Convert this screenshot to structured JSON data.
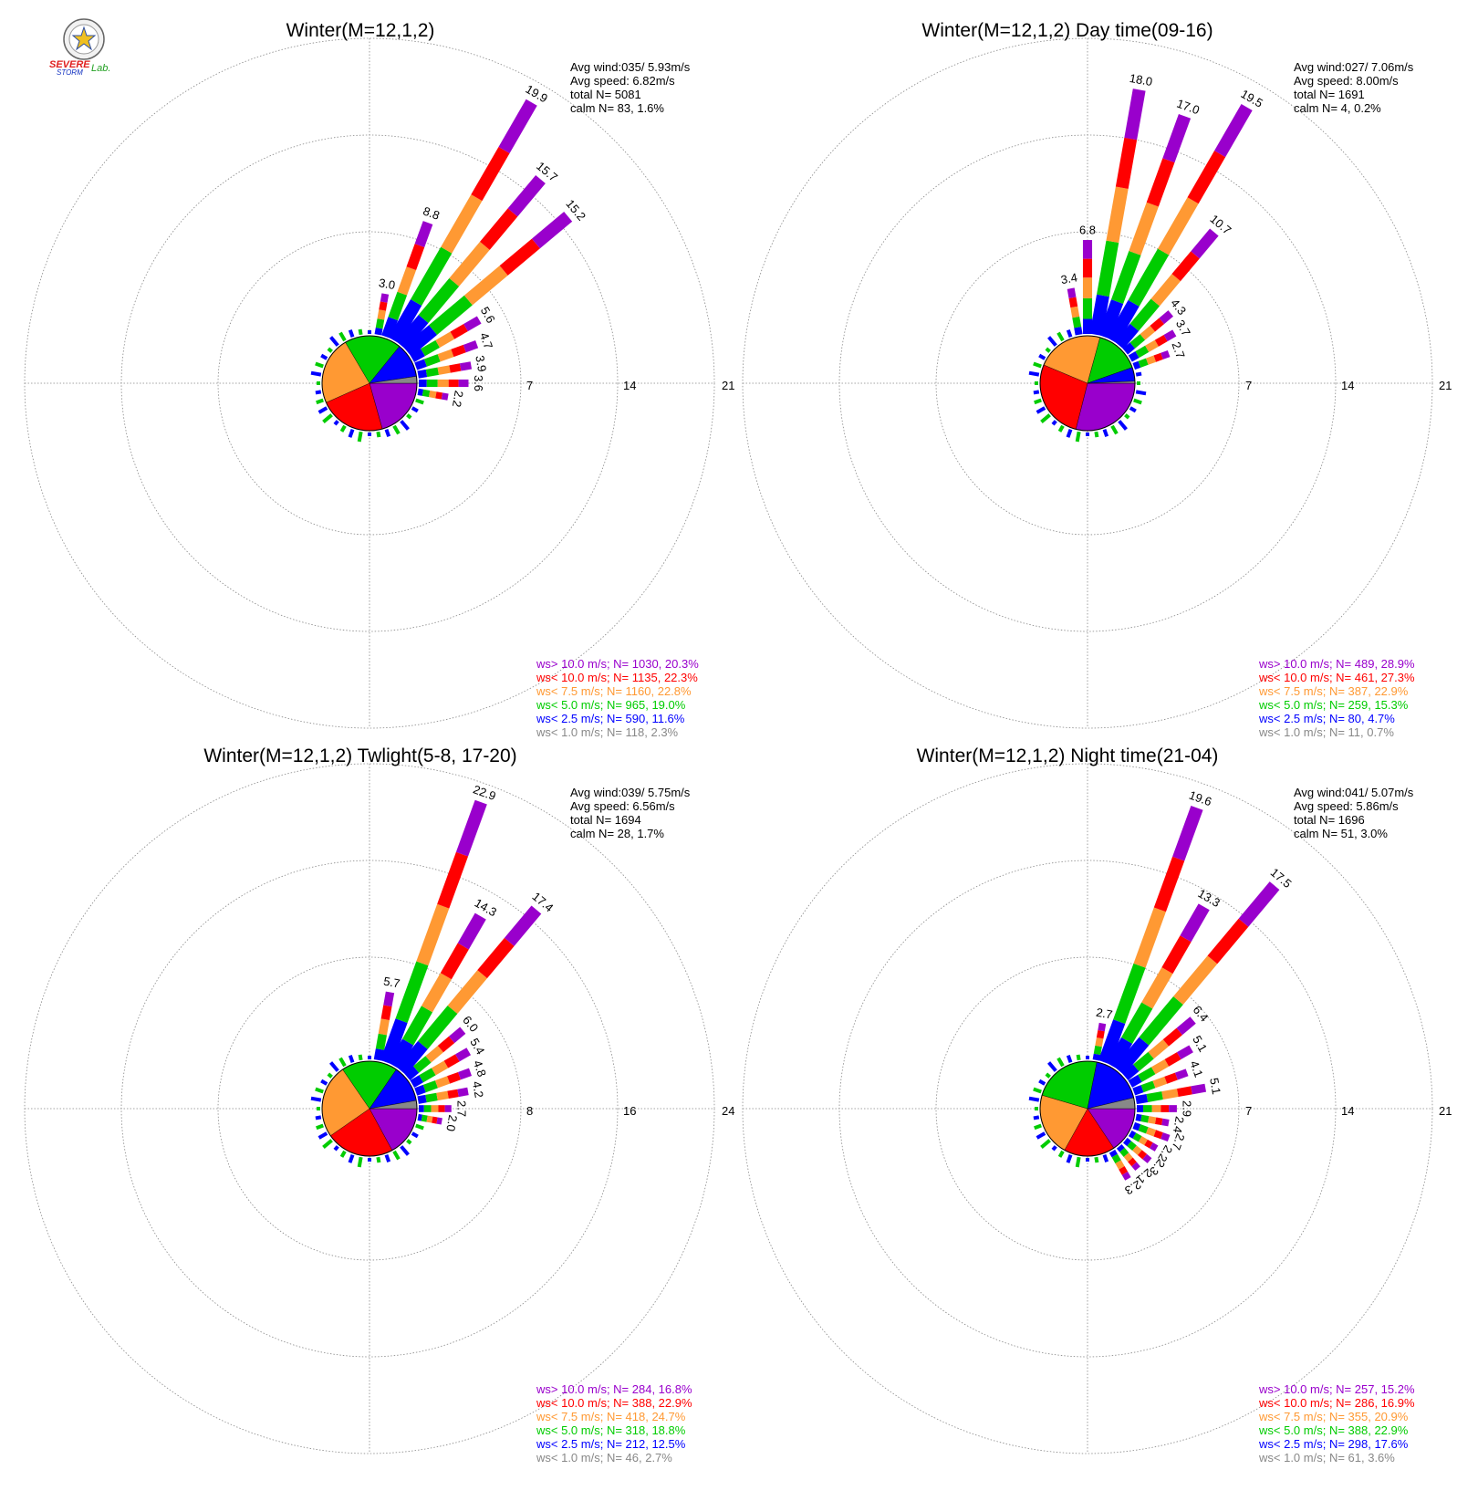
{
  "logo": {
    "text_top": "SEVERE",
    "text_bottom": "STORM",
    "text_lab": "Lab."
  },
  "colors": {
    "v10plus": "#9900CC",
    "v10": "#FF0000",
    "v7_5": "#FF9933",
    "v5": "#00CC00",
    "v2_5": "#0000FF",
    "v1": "#888888"
  },
  "chart_data": [
    {
      "type": "windrose",
      "title": "Winter(M=12,1,2)",
      "stats": {
        "avg_wind": "Avg wind:035/ 5.93m/s",
        "avg_speed": "Avg speed: 6.82m/s",
        "total": "total N=      5081",
        "calm": "calm N=     83,   1.6%"
      },
      "ring_labels": [
        "7",
        "14",
        "21"
      ],
      "rmax": 21,
      "directions_deg": [
        10,
        20,
        30,
        40,
        50,
        60,
        70,
        80,
        90,
        100
      ],
      "direction_totals": [
        3.0,
        8.8,
        19.9,
        15.7,
        15.2,
        5.6,
        4.7,
        3.9,
        3.6,
        2.2
      ],
      "direction_labels": [
        "3.0",
        "8.8",
        "19.9",
        "15.7",
        "15.2",
        "5.6",
        "4.7",
        "3.9",
        "3.6",
        "2.2"
      ],
      "pie": [
        20.3,
        22.3,
        22.8,
        19.0,
        11.6,
        2.3
      ],
      "legend": [
        "ws> 10.0 m/s; N=   1030, 20.3%",
        "ws< 10.0 m/s; N=   1135, 22.3%",
        "ws<  7.5 m/s; N=   1160, 22.8%",
        "ws<  5.0 m/s; N=    965, 19.0%",
        "ws<  2.5 m/s; N=    590, 11.6%",
        "ws<  1.0 m/s; N=    118,  2.3%"
      ]
    },
    {
      "type": "windrose",
      "title": "Winter(M=12,1,2) Day time(09-16)",
      "stats": {
        "avg_wind": "Avg wind:027/ 7.06m/s",
        "avg_speed": "Avg speed: 8.00m/s",
        "total": "total N=      1691",
        "calm": "calm N=      4,   0.2%"
      },
      "ring_labels": [
        "7",
        "14",
        "21"
      ],
      "rmax": 21,
      "directions_deg": [
        -10,
        0,
        10,
        20,
        30,
        40,
        50,
        60,
        70
      ],
      "direction_totals": [
        3.4,
        6.8,
        18.0,
        17.0,
        19.5,
        10.7,
        4.3,
        3.7,
        2.7
      ],
      "direction_labels": [
        "3.4",
        "6.8",
        "18.0",
        "17.0",
        "19.5",
        "10.7",
        "4.3",
        "3.7",
        "2.7"
      ],
      "pie": [
        28.9,
        27.3,
        22.9,
        15.3,
        4.7,
        0.7
      ],
      "legend": [
        "ws> 10.0 m/s; N=    489, 28.9%",
        "ws< 10.0 m/s; N=    461, 27.3%",
        "ws<  7.5 m/s; N=    387, 22.9%",
        "ws<  5.0 m/s; N=    259, 15.3%",
        "ws<  2.5 m/s; N=     80,  4.7%",
        "ws<  1.0 m/s; N=     11,  0.7%"
      ]
    },
    {
      "type": "windrose",
      "title": "Winter(M=12,1,2) Twlight(5-8, 17-20)",
      "stats": {
        "avg_wind": "Avg wind:039/ 5.75m/s",
        "avg_speed": "Avg speed: 6.56m/s",
        "total": "total N=      1694",
        "calm": "calm N=     28,   1.7%"
      },
      "ring_labels": [
        "8",
        "16",
        "24"
      ],
      "rmax": 24,
      "directions_deg": [
        10,
        20,
        30,
        40,
        50,
        60,
        70,
        80,
        90,
        100
      ],
      "direction_totals": [
        5.7,
        22.9,
        14.3,
        17.4,
        6.0,
        5.4,
        4.8,
        4.2,
        2.7,
        2.0
      ],
      "direction_labels": [
        "5.7",
        "22.9",
        "14.3",
        "17.4",
        "6.0",
        "5.4",
        "4.8",
        "4.2",
        "2.7",
        "2.0"
      ],
      "pie": [
        16.8,
        22.9,
        24.7,
        18.8,
        12.5,
        2.7
      ],
      "legend": [
        "ws> 10.0 m/s; N=    284, 16.8%",
        "ws< 10.0 m/s; N=    388, 22.9%",
        "ws<  7.5 m/s; N=    418, 24.7%",
        "ws<  5.0 m/s; N=    318, 18.8%",
        "ws<  2.5 m/s; N=    212, 12.5%",
        "ws<  1.0 m/s; N=     46,  2.7%"
      ]
    },
    {
      "type": "windrose",
      "title": "Winter(M=12,1,2) Night time(21-04)",
      "stats": {
        "avg_wind": "Avg wind:041/ 5.07m/s",
        "avg_speed": "Avg speed: 5.86m/s",
        "total": "total N=      1696",
        "calm": "calm N=     51,   3.0%"
      },
      "ring_labels": [
        "7",
        "14",
        "21"
      ],
      "rmax": 21,
      "directions_deg": [
        10,
        20,
        30,
        40,
        50,
        60,
        70,
        80,
        90,
        100,
        110,
        120,
        130,
        140,
        150
      ],
      "direction_totals": [
        2.7,
        19.6,
        13.3,
        17.5,
        6.4,
        5.1,
        4.1,
        5.1,
        2.9,
        2.4,
        2.7,
        2.2,
        2.3,
        2.1,
        2.3
      ],
      "direction_labels": [
        "2.7",
        "19.6",
        "13.3",
        "17.5",
        "6.4",
        "5.1",
        "4.1",
        "5.1",
        "2.9",
        "2.4",
        "2.7",
        "2.2",
        "2.3",
        "2.1",
        "2.3"
      ],
      "pie": [
        15.2,
        16.9,
        20.9,
        22.9,
        17.6,
        3.6
      ],
      "legend": [
        "ws> 10.0 m/s; N=    257, 15.2%",
        "ws< 10.0 m/s; N=    286, 16.9%",
        "ws<  7.5 m/s; N=    355, 20.9%",
        "ws<  5.0 m/s; N=    388, 22.9%",
        "ws<  2.5 m/s; N=    298, 17.6%",
        "ws<  1.0 m/s; N=     61,  3.6%"
      ]
    }
  ]
}
